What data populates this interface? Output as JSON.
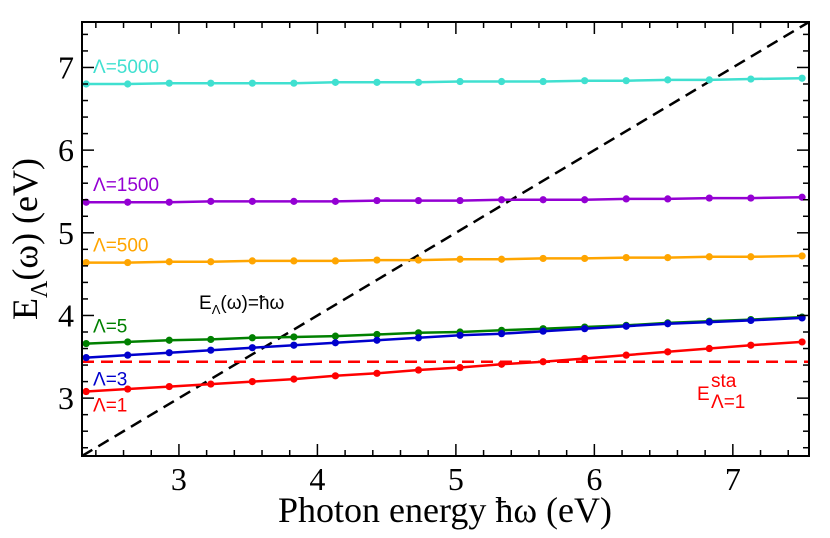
{
  "chart_data": {
    "type": "line",
    "xlabel": "Photon energy ħω (eV)",
    "ylabel_main": "E",
    "ylabel_sub": "Λ",
    "ylabel_tail": "(ω) (eV)",
    "xlim": [
      2.3,
      7.55
    ],
    "ylim": [
      2.3,
      7.55
    ],
    "xticks": [
      3,
      4,
      5,
      6,
      7
    ],
    "yticks": [
      3,
      4,
      5,
      6,
      7
    ],
    "x": [
      2.33,
      2.63,
      2.93,
      3.23,
      3.53,
      3.83,
      4.13,
      4.43,
      4.73,
      5.03,
      5.33,
      5.63,
      5.93,
      6.23,
      6.53,
      6.83,
      7.13,
      7.5
    ],
    "series": [
      {
        "name": "Λ=5000",
        "color": "#40e0d0",
        "values": [
          6.8,
          6.8,
          6.81,
          6.81,
          6.81,
          6.81,
          6.82,
          6.82,
          6.82,
          6.83,
          6.83,
          6.83,
          6.84,
          6.84,
          6.85,
          6.85,
          6.86,
          6.87
        ]
      },
      {
        "name": "Λ=1500",
        "color": "#9400d3",
        "values": [
          5.37,
          5.37,
          5.37,
          5.38,
          5.38,
          5.38,
          5.38,
          5.39,
          5.39,
          5.39,
          5.4,
          5.4,
          5.4,
          5.41,
          5.41,
          5.42,
          5.42,
          5.43
        ]
      },
      {
        "name": "Λ=500",
        "color": "#ffa500",
        "values": [
          4.64,
          4.64,
          4.65,
          4.65,
          4.66,
          4.66,
          4.66,
          4.67,
          4.67,
          4.68,
          4.68,
          4.69,
          4.69,
          4.7,
          4.7,
          4.71,
          4.71,
          4.72
        ]
      },
      {
        "name": "Λ=5",
        "color": "#008000",
        "values": [
          3.66,
          3.68,
          3.7,
          3.71,
          3.73,
          3.74,
          3.75,
          3.77,
          3.79,
          3.8,
          3.82,
          3.84,
          3.86,
          3.88,
          3.91,
          3.93,
          3.95,
          3.98
        ]
      },
      {
        "name": "Λ=3",
        "color": "#0000cd",
        "values": [
          3.49,
          3.52,
          3.55,
          3.58,
          3.61,
          3.64,
          3.67,
          3.7,
          3.73,
          3.76,
          3.78,
          3.81,
          3.84,
          3.87,
          3.9,
          3.92,
          3.94,
          3.97
        ]
      },
      {
        "name": "Λ=1",
        "color": "#ff0000",
        "values": [
          3.08,
          3.11,
          3.14,
          3.17,
          3.2,
          3.23,
          3.27,
          3.3,
          3.34,
          3.37,
          3.41,
          3.44,
          3.48,
          3.52,
          3.56,
          3.6,
          3.64,
          3.68
        ]
      }
    ],
    "reference_lines": [
      {
        "name": "E_Λ(ω)=ħω",
        "style": "dashed",
        "color": "#000000",
        "from": [
          2.3,
          2.3
        ],
        "to": [
          7.55,
          7.55
        ]
      },
      {
        "name": "E_Λ=1^sta",
        "style": "dashed",
        "color": "#ff0000",
        "y": 3.44
      }
    ],
    "annotations": {
      "diag_main": "E",
      "diag_sub": "Λ",
      "diag_tail": "(ω)=ħω",
      "sta_main": "E",
      "sta_sup": "sta",
      "sta_sub": "Λ=1"
    }
  }
}
